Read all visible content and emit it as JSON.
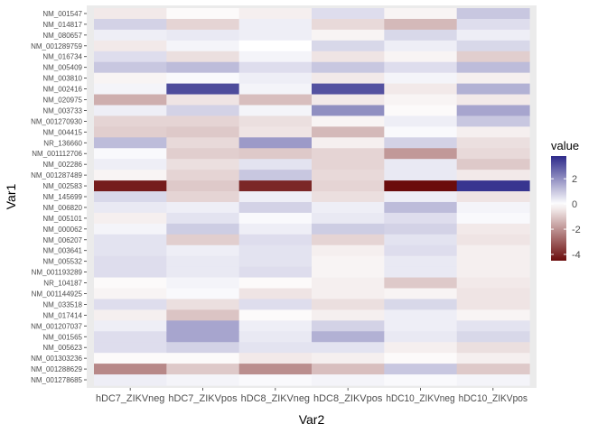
{
  "chart_data": {
    "type": "heatmap",
    "xlabel": "Var2",
    "ylabel": "Var1",
    "legend_title": "value",
    "legend_ticks": [
      2,
      0,
      -2,
      -4
    ],
    "value_range": [
      -4.5,
      3.8
    ],
    "colors": {
      "low": "#6b0c0c",
      "mid": "#ffffff",
      "high": "#2d2a8a"
    },
    "legend_position": "right",
    "columns": [
      "hDC7_ZIKVneg",
      "hDC7_ZIKVpos",
      "hDC8_ZIKVneg",
      "hDC8_ZIKVpos",
      "hDC10_ZIKVneg",
      "hDC10_ZIKVpos"
    ],
    "rows": [
      "NM_001547",
      "NM_014817",
      "NM_080657",
      "NM_001289759",
      "NM_016734",
      "NM_005409",
      "NM_003810",
      "NM_002416",
      "NM_020975",
      "NM_003733",
      "NM_001270930",
      "NM_004415",
      "NR_136660",
      "NM_001112706",
      "NM_002286",
      "NM_001287489",
      "NM_002583",
      "NM_145699",
      "NM_006820",
      "NM_005101",
      "NM_000062",
      "NM_006207",
      "NM_003641",
      "NM_005532",
      "NM_001193289",
      "NR_104187",
      "NM_001144925",
      "NM_033518",
      "NM_017414",
      "NM_001207037",
      "NM_001565",
      "NM_005623",
      "NM_001303236",
      "NM_001288629",
      "NM_001278685"
    ],
    "values": [
      [
        -0.4,
        -0.1,
        -0.3,
        0.6,
        -0.2,
        1.0
      ],
      [
        0.8,
        -0.8,
        0.3,
        -0.7,
        -1.3,
        0.6
      ],
      [
        0.3,
        0.4,
        0.3,
        -0.2,
        0.7,
        0.3
      ],
      [
        -0.4,
        0.2,
        0.0,
        0.7,
        0.3,
        0.7
      ],
      [
        0.6,
        -0.6,
        0.2,
        -0.5,
        -0.2,
        -0.9
      ],
      [
        1.0,
        1.2,
        0.6,
        1.0,
        0.6,
        1.2
      ],
      [
        -0.2,
        0.1,
        0.3,
        -0.4,
        0.2,
        -0.3
      ],
      [
        0.2,
        3.2,
        0.2,
        3.1,
        -0.4,
        1.4
      ],
      [
        -1.5,
        -0.5,
        -1.2,
        -0.4,
        -0.2,
        -0.4
      ],
      [
        0.3,
        0.8,
        0.2,
        2.0,
        -0.1,
        1.6
      ],
      [
        -0.8,
        -0.8,
        -0.6,
        -0.2,
        0.3,
        1.0
      ],
      [
        -0.9,
        -1.0,
        -0.5,
        -1.3,
        0.1,
        -0.3
      ],
      [
        1.2,
        -0.7,
        1.8,
        -0.3,
        0.8,
        -0.6
      ],
      [
        0.1,
        -0.9,
        -1.0,
        -0.8,
        -1.9,
        -0.7
      ],
      [
        0.3,
        -0.6,
        0.5,
        -0.8,
        0.4,
        -1.0
      ],
      [
        -0.2,
        -0.8,
        1.0,
        -0.7,
        0.4,
        -0.4
      ],
      [
        -4.2,
        -1.0,
        -4.0,
        -0.8,
        -4.5,
        3.6
      ],
      [
        0.7,
        -0.8,
        0.3,
        -0.6,
        0.3,
        -0.5
      ],
      [
        0.4,
        0.3,
        0.8,
        0.3,
        1.2,
        0.2
      ],
      [
        -0.3,
        0.5,
        0.1,
        0.4,
        0.6,
        0.1
      ],
      [
        0.2,
        0.9,
        0.3,
        0.9,
        0.8,
        -0.4
      ],
      [
        0.5,
        -0.9,
        0.6,
        -0.8,
        0.5,
        -0.5
      ],
      [
        0.5,
        0.3,
        0.5,
        -0.3,
        0.6,
        -0.3
      ],
      [
        0.6,
        0.4,
        0.5,
        -0.2,
        0.4,
        -0.3
      ],
      [
        0.6,
        0.4,
        0.6,
        -0.2,
        0.4,
        -0.3
      ],
      [
        -0.1,
        0.2,
        -0.1,
        -0.3,
        -1.0,
        -0.4
      ],
      [
        -0.2,
        0.1,
        -0.5,
        -0.3,
        -0.2,
        -0.5
      ],
      [
        0.6,
        -0.6,
        0.6,
        -0.6,
        0.7,
        -0.5
      ],
      [
        -0.3,
        -1.1,
        -0.1,
        -0.3,
        0.3,
        -0.2
      ],
      [
        0.3,
        1.6,
        0.3,
        0.8,
        0.3,
        0.5
      ],
      [
        0.6,
        1.6,
        0.4,
        1.4,
        0.4,
        0.7
      ],
      [
        0.6,
        0.8,
        0.5,
        0.5,
        -0.3,
        -0.6
      ],
      [
        -0.1,
        -0.1,
        -0.4,
        -0.3,
        -0.1,
        -0.3
      ],
      [
        -2.2,
        -1.0,
        -2.1,
        -1.2,
        1.0,
        -1.0
      ],
      [
        0.3,
        0.2,
        0.1,
        0.2,
        0.1,
        0.2
      ]
    ]
  }
}
